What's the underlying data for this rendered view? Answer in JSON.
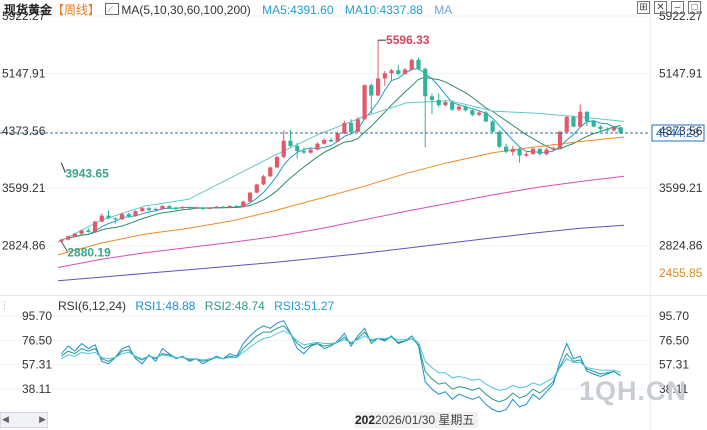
{
  "header": {
    "title": "现货黄金",
    "period": "【周线】",
    "ma_label": "MA(5,10,30,60,100,200)",
    "ma5": "MA5:4391.60",
    "ma10": "MA10:4337.88",
    "ma_more": "MA",
    "icons": [
      "grid-icon",
      "close-icon",
      "minimize-icon",
      "maximize-icon"
    ]
  },
  "rsi_header": {
    "label": "RSI(6,12,24)",
    "rsi1": "RSI1:48.88",
    "rsi2": "RSI2:48.74",
    "rsi3": "RSI3:51.27"
  },
  "footer": {
    "timestamp_prefix": "202",
    "timestamp": "2026/01/30 星期五"
  },
  "watermark": "1QH.CN",
  "colors": {
    "up": "#e05a6b",
    "down": "#2fb39a",
    "ma5": "#1f9fcf",
    "ma10": "#2b8f66",
    "ma30": "#5fcac8",
    "ma60": "#f08a24",
    "ma100": "#d44fc0",
    "ma200": "#6b4cc0",
    "rsi1": "#1b8fd0",
    "rsi2": "#2b9a8a",
    "rsi3": "#4fc3e8",
    "current_price_line": "#3a6f8f",
    "current_price_box": "#1f6fc4",
    "low_ref_label": "#d98a20"
  },
  "chart_data": [
    {
      "type": "candlestick",
      "title": "现货黄金【周线】",
      "price_axis_ticks": [
        5922.27,
        5147.91,
        4373.56,
        3599.21,
        2824.86
      ],
      "price_axis_tick_labels": [
        "5922.27",
        "5147.91",
        "4373.56",
        "3599.21",
        "2824.86"
      ],
      "ylim": [
        2455.85,
        5922.27
      ],
      "current_price": "4344.28",
      "current_price_value": 4344.28,
      "low_reference": "2455.85",
      "annotations": [
        {
          "text": "5596.33",
          "value": 5596.33,
          "kind": "high"
        },
        {
          "text": "2880.19",
          "value": 2880.19,
          "kind": "low"
        },
        {
          "text": "3943.65",
          "value": 3943.65,
          "kind": "low"
        }
      ],
      "series_legend": [
        {
          "name": "MA5",
          "value": 4391.6
        },
        {
          "name": "MA10",
          "value": 4337.88
        }
      ],
      "candles": [
        [
          2880,
          2905,
          2880,
          2910
        ],
        [
          2905,
          2950,
          2895,
          2960
        ],
        [
          2950,
          2985,
          2940,
          2995
        ],
        [
          2985,
          3030,
          2975,
          3040
        ],
        [
          3030,
          3010,
          3000,
          3060
        ],
        [
          3010,
          3150,
          3005,
          3160
        ],
        [
          3150,
          3230,
          3140,
          3260
        ],
        [
          3230,
          3195,
          3180,
          3300
        ],
        [
          3195,
          3180,
          3120,
          3210
        ],
        [
          3180,
          3250,
          3170,
          3270
        ],
        [
          3250,
          3225,
          3200,
          3265
        ],
        [
          3225,
          3290,
          3215,
          3300
        ],
        [
          3290,
          3330,
          3280,
          3345
        ],
        [
          3330,
          3305,
          3290,
          3350
        ],
        [
          3305,
          3320,
          3295,
          3340
        ],
        [
          3320,
          3360,
          3310,
          3370
        ],
        [
          3360,
          3335,
          3320,
          3375
        ],
        [
          3335,
          3330,
          3300,
          3350
        ],
        [
          3330,
          3345,
          3320,
          3360
        ],
        [
          3345,
          3330,
          3310,
          3355
        ],
        [
          3330,
          3340,
          3320,
          3350
        ],
        [
          3340,
          3320,
          3305,
          3350
        ],
        [
          3320,
          3335,
          3315,
          3345
        ],
        [
          3335,
          3350,
          3325,
          3360
        ],
        [
          3350,
          3340,
          3330,
          3360
        ],
        [
          3340,
          3360,
          3335,
          3370
        ],
        [
          3360,
          3345,
          3335,
          3375
        ],
        [
          3345,
          3420,
          3340,
          3430
        ],
        [
          3420,
          3540,
          3410,
          3550
        ],
        [
          3540,
          3650,
          3530,
          3660
        ],
        [
          3650,
          3760,
          3640,
          3780
        ],
        [
          3760,
          3880,
          3750,
          3890
        ],
        [
          3880,
          4020,
          3870,
          4040
        ],
        [
          4020,
          4240,
          4000,
          4380
        ],
        [
          4240,
          4170,
          4150,
          4390
        ],
        [
          4170,
          4100,
          4000,
          4210
        ],
        [
          4100,
          4080,
          4060,
          4150
        ],
        [
          4080,
          4120,
          4060,
          4140
        ],
        [
          4120,
          4200,
          4110,
          4220
        ],
        [
          4200,
          4250,
          4190,
          4270
        ],
        [
          4250,
          4230,
          4220,
          4280
        ],
        [
          4230,
          4340,
          4220,
          4360
        ],
        [
          4340,
          4480,
          4330,
          4510
        ],
        [
          4480,
          4360,
          4350,
          4530
        ],
        [
          4360,
          4530,
          4355,
          4560
        ],
        [
          4530,
          4990,
          4520,
          5000
        ],
        [
          4990,
          4850,
          4600,
          5010
        ],
        [
          4850,
          5080,
          4840,
          5596
        ],
        [
          5080,
          5150,
          4980,
          5180
        ],
        [
          5150,
          5190,
          5040,
          5210
        ],
        [
          5190,
          5140,
          5120,
          5260
        ],
        [
          5140,
          5200,
          5130,
          5220
        ],
        [
          5200,
          5330,
          5190,
          5350
        ],
        [
          5330,
          5210,
          5190,
          5360
        ],
        [
          5210,
          4840,
          4150,
          5230
        ],
        [
          4840,
          4790,
          4600,
          4880
        ],
        [
          4790,
          4720,
          4690,
          4880
        ],
        [
          4720,
          4760,
          4700,
          4790
        ],
        [
          4760,
          4660,
          4640,
          4780
        ],
        [
          4660,
          4700,
          4640,
          4730
        ],
        [
          4700,
          4650,
          4630,
          4720
        ],
        [
          4650,
          4590,
          4570,
          4680
        ],
        [
          4590,
          4620,
          4570,
          4640
        ],
        [
          4620,
          4500,
          4490,
          4640
        ],
        [
          4500,
          4360,
          4340,
          4520
        ],
        [
          4360,
          4160,
          4140,
          4380
        ],
        [
          4160,
          4090,
          4070,
          4200
        ],
        [
          4090,
          4130,
          4040,
          4170
        ],
        [
          4130,
          4040,
          3944,
          4150
        ],
        [
          4040,
          4060,
          4020,
          4090
        ],
        [
          4060,
          4130,
          4050,
          4150
        ],
        [
          4130,
          4060,
          4040,
          4140
        ],
        [
          4060,
          4120,
          4040,
          4140
        ],
        [
          4120,
          4140,
          4100,
          4160
        ],
        [
          4140,
          4360,
          4130,
          4370
        ],
        [
          4360,
          4560,
          4350,
          4580
        ],
        [
          4560,
          4430,
          4420,
          4580
        ],
        [
          4430,
          4630,
          4420,
          4730
        ],
        [
          4630,
          4500,
          4440,
          4640
        ],
        [
          4500,
          4430,
          4420,
          4510
        ],
        [
          4430,
          4400,
          4360,
          4450
        ],
        [
          4400,
          4380,
          4350,
          4420
        ],
        [
          4380,
          4420,
          4360,
          4440
        ],
        [
          4420,
          4344,
          4330,
          4430
        ]
      ],
      "candle_fields": [
        "open",
        "close",
        "low",
        "high"
      ],
      "moving_averages": [
        {
          "name": "MA30",
          "values": [
            2870,
            3170,
            3360,
            3450,
            3750,
            4050,
            4330,
            4560,
            4750,
            4780,
            4640,
            4610,
            4560,
            4500
          ]
        },
        {
          "name": "MA60",
          "values": [
            2700,
            2860,
            2980,
            3060,
            3160,
            3300,
            3460,
            3620,
            3800,
            3950,
            4080,
            4160,
            4230,
            4290
          ]
        },
        {
          "name": "MA100",
          "values": [
            2530,
            2640,
            2730,
            2800,
            2870,
            2950,
            3050,
            3170,
            3290,
            3400,
            3510,
            3610,
            3690,
            3760
          ]
        },
        {
          "name": "MA200",
          "values": [
            2350,
            2400,
            2450,
            2500,
            2550,
            2600,
            2660,
            2720,
            2790,
            2860,
            2930,
            3000,
            3060,
            3100
          ]
        }
      ]
    },
    {
      "type": "line",
      "title": "RSI(6,12,24)",
      "yticks": [
        95.7,
        76.5,
        57.31,
        38.11
      ],
      "ytick_labels": [
        "95.70",
        "76.50",
        "57.31",
        "38.11"
      ],
      "ylim": [
        20,
        95.7
      ],
      "series": [
        {
          "name": "RSI1",
          "values": [
            66,
            72,
            68,
            74,
            70,
            73,
            60,
            58,
            63,
            70,
            72,
            62,
            58,
            65,
            60,
            70,
            66,
            62,
            64,
            60,
            62,
            58,
            61,
            64,
            62,
            66,
            64,
            74,
            80,
            85,
            88,
            86,
            90,
            92,
            82,
            70,
            66,
            72,
            74,
            70,
            72,
            76,
            82,
            72,
            80,
            86,
            74,
            78,
            76,
            80,
            74,
            76,
            80,
            72,
            44,
            38,
            34,
            36,
            30,
            34,
            32,
            30,
            32,
            26,
            22,
            20,
            22,
            30,
            24,
            26,
            34,
            30,
            36,
            42,
            60,
            74,
            62,
            64,
            52,
            50,
            48,
            50,
            52,
            48.88
          ]
        },
        {
          "name": "RSI2",
          "values": [
            64,
            68,
            66,
            70,
            68,
            70,
            62,
            60,
            63,
            68,
            69,
            63,
            61,
            64,
            62,
            66,
            65,
            63,
            63,
            61,
            62,
            60,
            61,
            63,
            62,
            64,
            63,
            70,
            75,
            80,
            83,
            83,
            86,
            88,
            82,
            74,
            70,
            73,
            74,
            72,
            73,
            75,
            79,
            74,
            78,
            83,
            76,
            78,
            77,
            79,
            75,
            76,
            78,
            73,
            52,
            46,
            42,
            43,
            38,
            40,
            39,
            37,
            39,
            34,
            30,
            28,
            30,
            35,
            31,
            33,
            38,
            35,
            39,
            44,
            56,
            66,
            60,
            61,
            54,
            52,
            50,
            51,
            52,
            48.74
          ]
        },
        {
          "name": "RSI3",
          "values": [
            62,
            65,
            64,
            67,
            66,
            67,
            63,
            62,
            63,
            66,
            67,
            64,
            62,
            64,
            63,
            65,
            64,
            63,
            63,
            62,
            62,
            61,
            62,
            63,
            62,
            63,
            63,
            67,
            71,
            75,
            78,
            79,
            82,
            84,
            81,
            76,
            73,
            74,
            75,
            74,
            74,
            75,
            77,
            75,
            77,
            80,
            77,
            78,
            78,
            79,
            77,
            77,
            78,
            75,
            60,
            55,
            51,
            51,
            47,
            48,
            47,
            45,
            46,
            42,
            39,
            37,
            38,
            41,
            39,
            40,
            43,
            41,
            44,
            47,
            55,
            62,
            59,
            59,
            55,
            54,
            53,
            53,
            53,
            51.27
          ]
        }
      ]
    }
  ]
}
